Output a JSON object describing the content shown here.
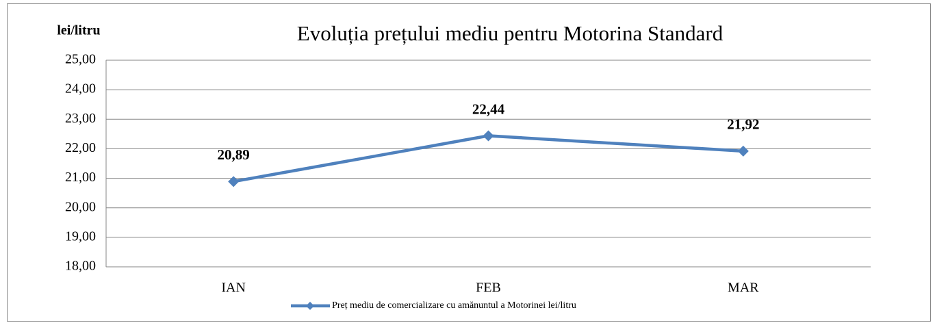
{
  "chart_data": {
    "type": "line",
    "title": "Evoluția prețului mediu pentru Motorina Standard",
    "y_axis_label": "lei/litru",
    "categories": [
      "IAN",
      "FEB",
      "MAR"
    ],
    "series": [
      {
        "name": "Preț mediu de comercializare cu amănuntul a Motorinei lei/litru",
        "color": "#4f81bd",
        "values": [
          20.89,
          22.44,
          21.92
        ],
        "value_labels": [
          "20,89",
          "22,44",
          "21,92"
        ]
      }
    ],
    "ylim": [
      18,
      25
    ],
    "yticks": [
      {
        "value": 18,
        "label": "18,00"
      },
      {
        "value": 19,
        "label": "19,00"
      },
      {
        "value": 20,
        "label": "20,00"
      },
      {
        "value": 21,
        "label": "21,00"
      },
      {
        "value": 22,
        "label": "22,00"
      },
      {
        "value": 23,
        "label": "23,00"
      },
      {
        "value": 24,
        "label": "24,00"
      },
      {
        "value": 25,
        "label": "25,00"
      }
    ],
    "grid": true,
    "legend": "bottom"
  }
}
